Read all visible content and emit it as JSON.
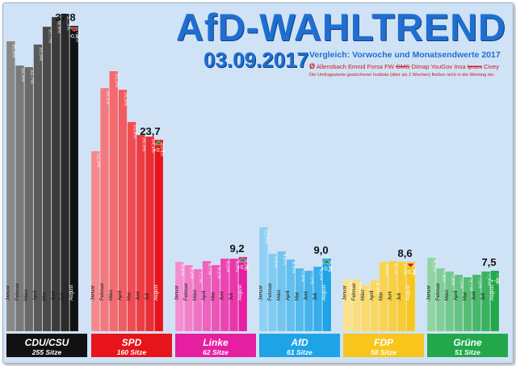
{
  "header": {
    "title": "AfD-WAHLTREND",
    "date": "03.09.2017",
    "comparison": "Vergleich: Vorwoche und Monatsendwerte 2017",
    "avg_symbol": "Ø",
    "institutes_plain": "Allensbach Emnid Forsa FW",
    "institutes_struck1": "GMS",
    "institutes_mid": "Dimap YouGov Insa",
    "institutes_struck2": "Ipsos",
    "institutes_end": "Civey",
    "note": "Die Umfragewerte gestrichener Institute (älter als 2 Wochen) fließen nicht in die Wertung ein."
  },
  "chart_data": {
    "type": "bar",
    "months": [
      "Januar",
      "Februar",
      "März",
      "April",
      "Mai",
      "Juni",
      "Juli",
      "August"
    ],
    "parties": [
      {
        "name": "CDU/CSU",
        "seats": "255 Sitze",
        "color": "#111111",
        "values": [
          35.9,
          32.9,
          32.7,
          35.5,
          37.7,
          38.9,
          39.3,
          37.8
        ],
        "current": "37,8",
        "change": "-0,6",
        "trend": "down"
      },
      {
        "name": "SPD",
        "seats": "160 Sitze",
        "color": "#e8141b",
        "values": [
          22.3,
          30.1,
          32.2,
          29.9,
          25.9,
          24.3,
          24.1,
          23.7
        ],
        "current": "23,7",
        "change": "+0,2",
        "trend": "up"
      },
      {
        "name": "Linke",
        "seats": "62 Sitze",
        "color": "#e61ea0",
        "values": [
          8.6,
          8.2,
          7.7,
          8.7,
          8.2,
          9.0,
          9.0,
          9.2
        ],
        "current": "9,2",
        "change": "+0,4",
        "trend": "up"
      },
      {
        "name": "AfD",
        "seats": "61 Sitze",
        "color": "#1ea3e6",
        "values": [
          12.9,
          9.6,
          9.9,
          8.9,
          7.8,
          7.5,
          8.0,
          9.0
        ],
        "current": "9,0",
        "change": "+0,5",
        "trend": "up"
      },
      {
        "name": "FDP",
        "seats": "58 Sitze",
        "color": "#f7c51b",
        "values": [
          6.4,
          6.4,
          5.7,
          6.3,
          8.6,
          8.7,
          8.6,
          8.6
        ],
        "current": "8,6",
        "change": "-0,3",
        "trend": "down"
      },
      {
        "name": "Grüne",
        "seats": "51 Sitze",
        "color": "#22a84a",
        "values": [
          9.1,
          7.8,
          7.4,
          7.0,
          6.7,
          7.0,
          7.4,
          7.5
        ],
        "current": "7,5",
        "change": "+-0",
        "trend": "same"
      }
    ]
  }
}
